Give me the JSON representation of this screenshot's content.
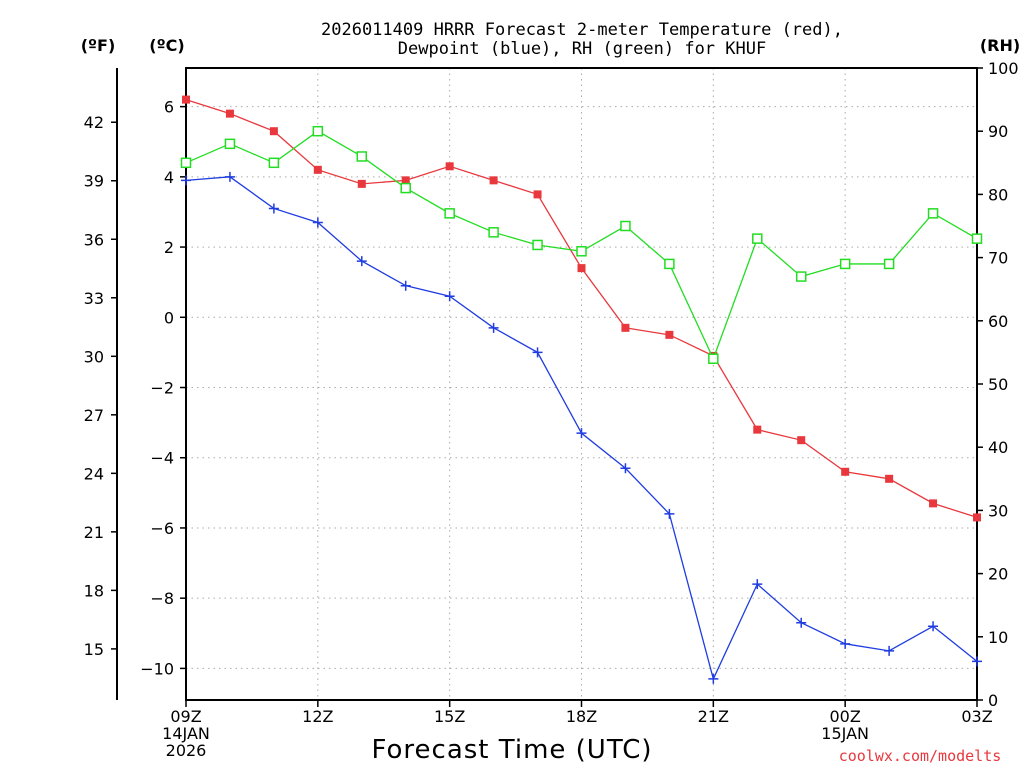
{
  "chart_data": {
    "type": "line",
    "title_line1": "2026011409 HRRR Forecast 2-meter Temperature (red),",
    "title_line2": "Dewpoint (blue), RH (green) for KHUF",
    "units": {
      "left_f": "(ºF)",
      "left_c": "(ºC)",
      "right_rh": "(RH)"
    },
    "xlabel": "Forecast Time (UTC)",
    "x_hours": [
      0,
      1,
      2,
      3,
      4,
      5,
      6,
      7,
      8,
      9,
      10,
      11,
      12,
      13,
      14,
      15,
      16,
      17,
      18
    ],
    "x_ticks": [
      {
        "hour": 0,
        "lines": [
          "09Z",
          "14JAN",
          "2026"
        ]
      },
      {
        "hour": 3,
        "lines": [
          "12Z"
        ]
      },
      {
        "hour": 6,
        "lines": [
          "15Z"
        ]
      },
      {
        "hour": 9,
        "lines": [
          "18Z"
        ]
      },
      {
        "hour": 12,
        "lines": [
          "21Z"
        ]
      },
      {
        "hour": 15,
        "lines": [
          "00Z",
          "15JAN"
        ]
      },
      {
        "hour": 18,
        "lines": [
          "03Z"
        ]
      }
    ],
    "xlim": [
      0,
      18
    ],
    "c_axis": {
      "ylim": [
        -10.9,
        7.1
      ],
      "ticks": [
        6,
        4,
        2,
        0,
        -2,
        -4,
        -6,
        -8,
        -10
      ]
    },
    "f_axis": {
      "ticks": [
        42,
        39,
        36,
        33,
        30,
        27,
        24,
        21,
        18,
        15
      ]
    },
    "rh_axis": {
      "ylim": [
        0,
        100
      ],
      "ticks": [
        100,
        90,
        80,
        70,
        60,
        50,
        40,
        30,
        20,
        10,
        0
      ]
    },
    "grid": true,
    "series": [
      {
        "name": "Temperature",
        "unit": "C",
        "color": "#e8383d",
        "marker": "filled-square",
        "values": [
          6.2,
          5.8,
          5.3,
          4.2,
          3.8,
          3.9,
          4.3,
          3.9,
          3.5,
          1.4,
          -0.3,
          -0.5,
          -1.1,
          -3.2,
          -3.5,
          -4.4,
          -4.6,
          -5.3,
          -5.7
        ]
      },
      {
        "name": "Dewpoint",
        "unit": "C",
        "color": "#1f3de0",
        "marker": "plus",
        "values": [
          3.9,
          4.0,
          3.1,
          2.7,
          1.6,
          0.9,
          0.6,
          -0.3,
          -1.0,
          -3.3,
          -4.3,
          -5.6,
          -10.3,
          -7.6,
          -8.7,
          -9.3,
          -9.5,
          -8.8,
          -9.8
        ]
      },
      {
        "name": "RH",
        "unit": "%",
        "color": "#22dd22",
        "marker": "open-square",
        "values": [
          85,
          88,
          85,
          90,
          86,
          81,
          77,
          74,
          72,
          71,
          75,
          69,
          54,
          73,
          67,
          69,
          69,
          77,
          73
        ]
      }
    ],
    "credit": "coolwx.com/modelts"
  }
}
